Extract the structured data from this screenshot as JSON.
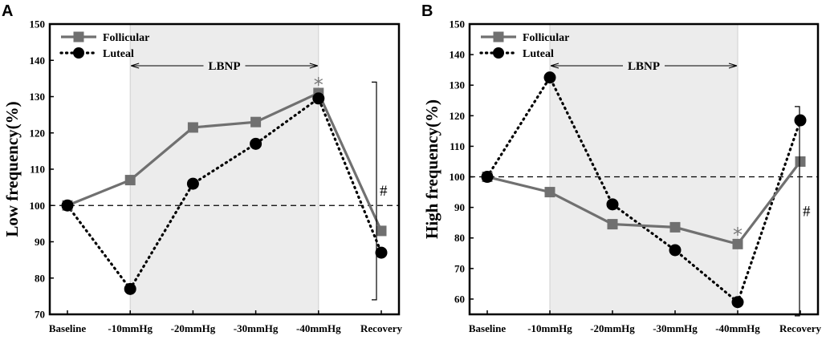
{
  "chart_data": [
    {
      "panel": "A",
      "type": "line",
      "ylabel": "Low frequency(%)",
      "categories": [
        "Baseline",
        "-10mmHg",
        "-20mmHg",
        "-30mmHg",
        "-40mmHg",
        "Recovery"
      ],
      "yticks": [
        "70",
        "80",
        "90",
        "100",
        "110",
        "120",
        "130",
        "140",
        "150"
      ],
      "ylim": [
        70,
        150
      ],
      "reference_line": 100,
      "shaded_range": [
        1,
        4
      ],
      "shaded_label": "LBNP",
      "series": [
        {
          "name": "Follicular",
          "values": [
            100,
            107,
            121.5,
            123,
            131,
            93
          ]
        },
        {
          "name": "Luteal",
          "values": [
            100,
            77,
            106,
            117,
            129.5,
            87
          ]
        }
      ],
      "bracket_range": [
        74,
        134
      ],
      "bracket_symbol": "#",
      "star_symbol": "*",
      "star_value": 134.5
    },
    {
      "panel": "B",
      "type": "line",
      "ylabel": "High frequency(%)",
      "categories": [
        "Baseline",
        "-10mmHg",
        "-20mmHg",
        "-30mmHg",
        "-40mmHg",
        "Recovery"
      ],
      "yticks": [
        "60",
        "70",
        "80",
        "90",
        "100",
        "110",
        "120",
        "130",
        "140",
        "150"
      ],
      "ylim": [
        55,
        150
      ],
      "reference_line": 100,
      "shaded_range": [
        1,
        4
      ],
      "shaded_label": "LBNP",
      "series": [
        {
          "name": "Follicular",
          "values": [
            100,
            95,
            84.5,
            83.5,
            78,
            105
          ]
        },
        {
          "name": "Luteal",
          "values": [
            100,
            132.5,
            91,
            76,
            59,
            118.5
          ]
        }
      ],
      "bracket_range": [
        54.5,
        123
      ],
      "bracket_symbol": "#",
      "star_symbol": "*",
      "star_value": 82.5
    }
  ],
  "colors": {
    "follicular": "#707070",
    "luteal": "#000000",
    "shade": "#ececec"
  }
}
